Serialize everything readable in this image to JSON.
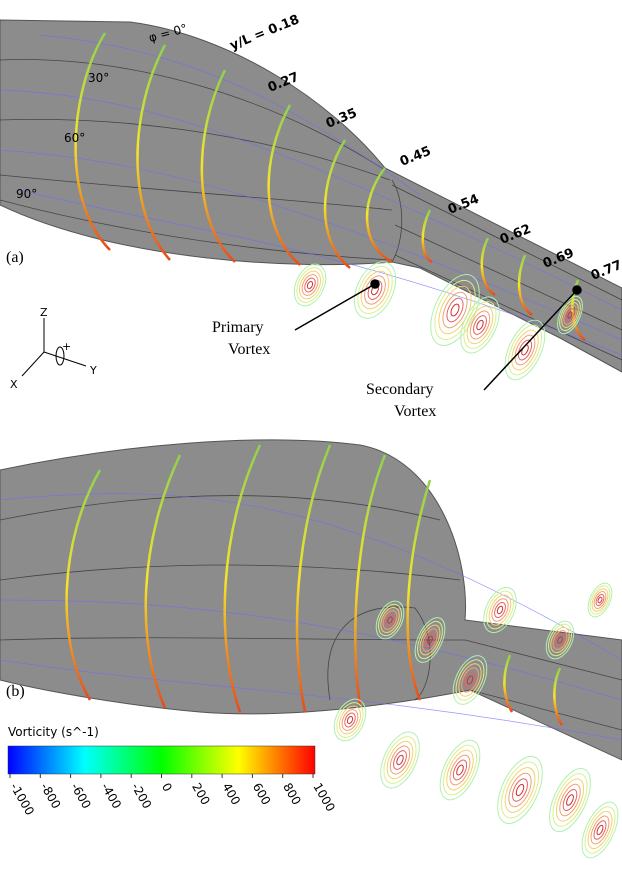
{
  "panel_a": {
    "label": "(a)",
    "angle_labels": [
      "φ = 0°",
      "30°",
      "60°",
      "90°"
    ],
    "station_labels": [
      "y/L = 0.18",
      "0.27",
      "0.35",
      "0.45",
      "0.54",
      "0.62",
      "0.69",
      "0.77"
    ],
    "primary_vortex": [
      "Primary",
      "Vortex"
    ],
    "secondary_vortex": [
      "Secondary",
      "Vortex"
    ],
    "axes": {
      "z": "Z",
      "x": "X",
      "y": "Y",
      "rotation": "+"
    }
  },
  "panel_b": {
    "label": "(b)"
  },
  "colorbar": {
    "title": "Vorticity (s^-1)",
    "ticks": [
      -1000,
      -800,
      -600,
      -400,
      -200,
      0,
      200,
      400,
      600,
      800,
      1000
    ]
  }
}
